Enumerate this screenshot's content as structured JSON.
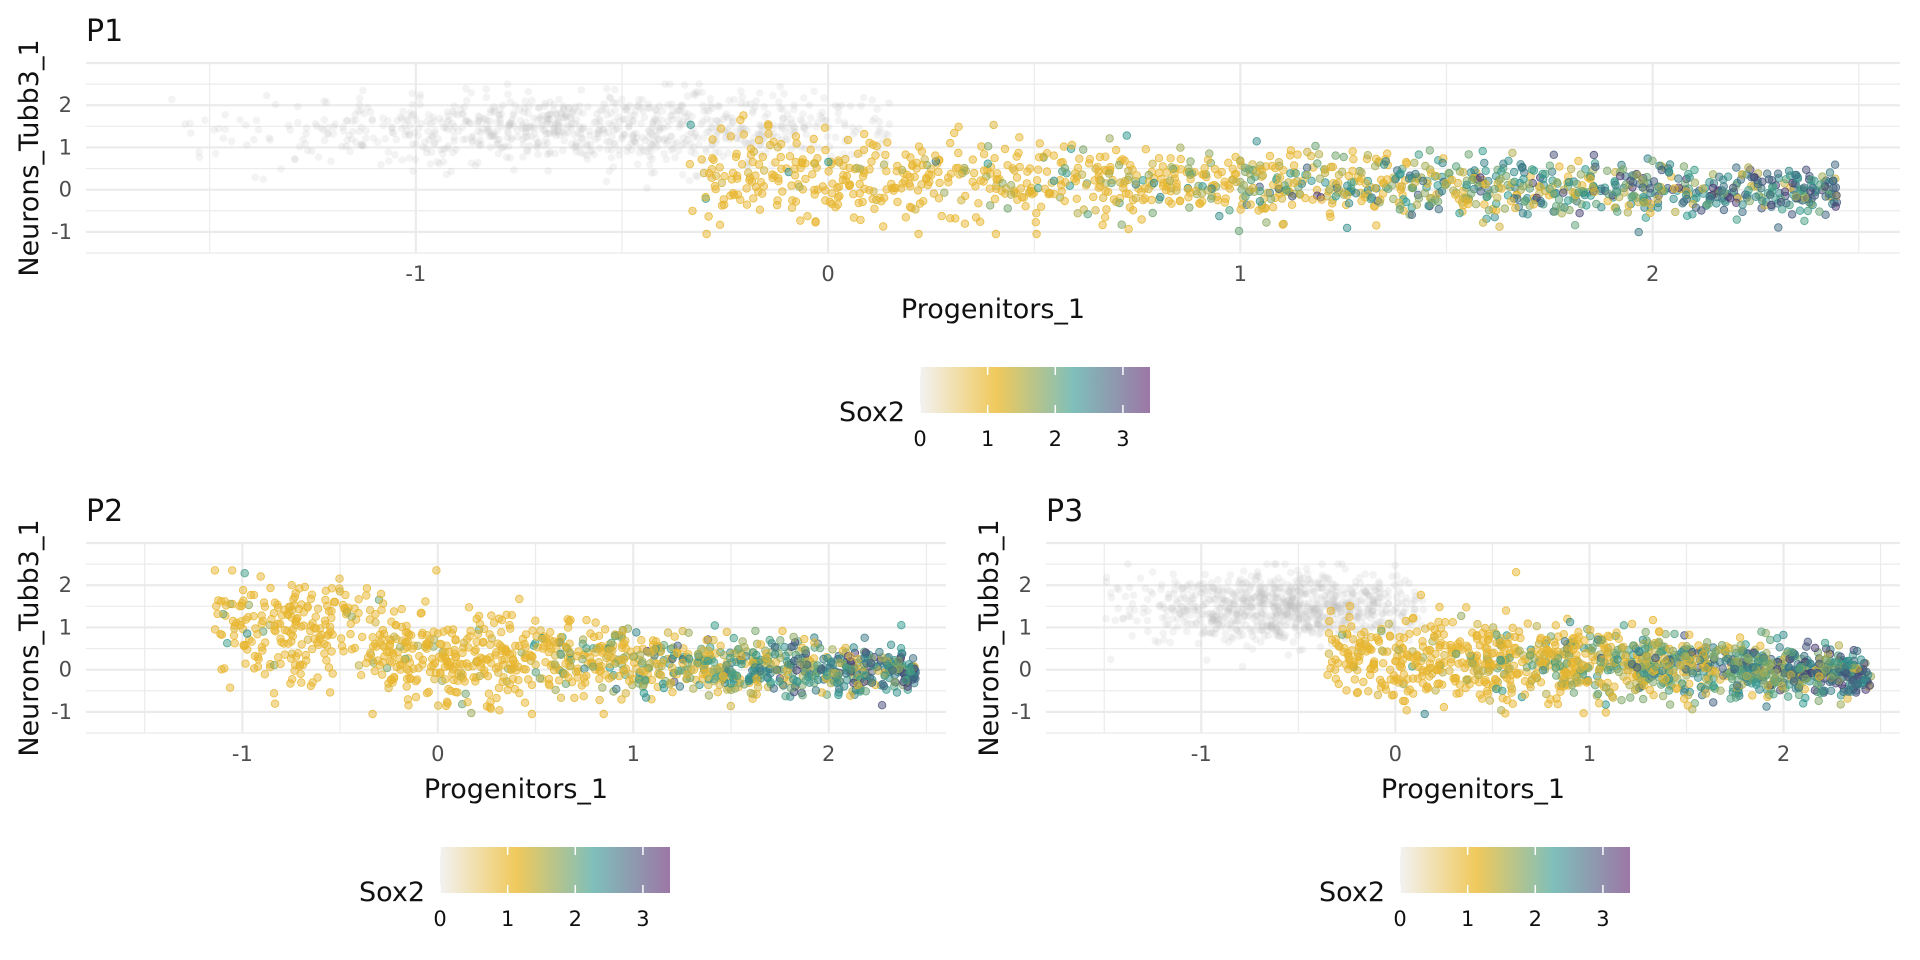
{
  "chart_data": [
    {
      "type": "scatter",
      "title": "P1",
      "xlabel": "Progenitors_1",
      "ylabel": "Neurons_Tubb3_1",
      "xlim": [
        -1.8,
        2.6
      ],
      "ylim": [
        -1.5,
        3.0
      ],
      "xticks": [
        -1,
        0,
        1,
        2
      ],
      "yticks": [
        -1,
        0,
        1,
        2
      ],
      "grid": true,
      "color_by": "Sox2",
      "population": "all cells incl. unexpressed (grey) cloud",
      "x_range": [
        -1.6,
        2.45
      ],
      "y_range": [
        -1.1,
        2.5
      ]
    },
    {
      "type": "scatter",
      "title": "P2",
      "xlabel": "Progenitors_1",
      "ylabel": "Neurons_Tubb3_1",
      "xlim": [
        -1.8,
        2.6
      ],
      "ylim": [
        -1.5,
        3.0
      ],
      "xticks": [
        -1,
        0,
        1,
        2
      ],
      "yticks": [
        -1,
        0,
        1,
        2
      ],
      "grid": true,
      "color_by": "Sox2",
      "population": "Sox2-expressing cells only",
      "x_range": [
        -1.15,
        2.45
      ],
      "y_range": [
        -1.1,
        2.4
      ]
    },
    {
      "type": "scatter",
      "title": "P3",
      "xlabel": "Progenitors_1",
      "ylabel": "Neurons_Tubb3_1",
      "xlim": [
        -1.8,
        2.6
      ],
      "ylim": [
        -1.5,
        3.0
      ],
      "xticks": [
        -1,
        0,
        1,
        2
      ],
      "yticks": [
        -1,
        0,
        1,
        2
      ],
      "grid": true,
      "color_by": "Sox2",
      "population": "all cells incl. unexpressed (grey) cloud",
      "x_range": [
        -1.5,
        2.45
      ],
      "y_range": [
        -1.1,
        2.6
      ]
    }
  ],
  "legend": {
    "title": "Sox2",
    "ticks": [
      0,
      1,
      2,
      3
    ],
    "range": [
      0,
      3.4
    ],
    "colors": [
      "#f2f2f2",
      "#f0c95c",
      "#7fbfba",
      "#9c77a6"
    ]
  },
  "colors": {
    "unexpressed": "#bdbdbd",
    "low": "#e8b52e",
    "mid": "#2f9b8f",
    "high": "#4b3a73",
    "grid": "#ebebeb",
    "panel_background": "#ffffff"
  }
}
